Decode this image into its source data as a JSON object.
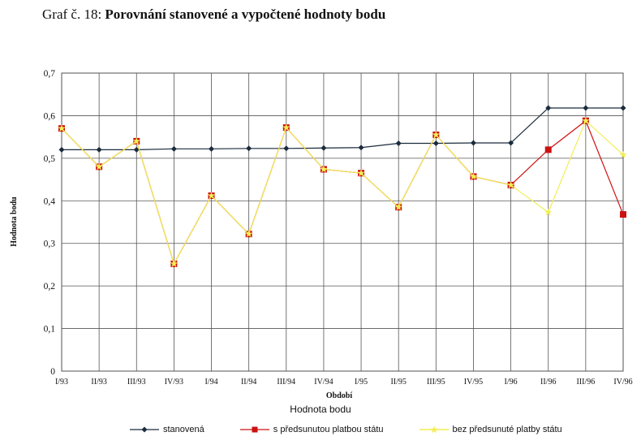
{
  "title": {
    "prefix": "Graf č. 18: ",
    "main": "Porovnání stanovené a vypočtené hodnoty bodu"
  },
  "chart_data": {
    "type": "line",
    "categories": [
      "I/93",
      "II/93",
      "III/93",
      "IV/93",
      "I/94",
      "II/94",
      "III/94",
      "IV/94",
      "I/95",
      "II/95",
      "III/95",
      "IV/95",
      "I/96",
      "II/96",
      "III/96",
      "IV/96"
    ],
    "ylim": [
      0,
      0.7
    ],
    "yticks": [
      "0",
      "0,1",
      "0,2",
      "0,3",
      "0,4",
      "0,5",
      "0,6",
      "0,7"
    ],
    "ylabel": "Hodnota bodu",
    "xlabel": "Období",
    "subtitle": "Hodnota bodu",
    "grid": true,
    "legend_position": "bottom",
    "series": [
      {
        "name": "stanovená",
        "color": "#1a2b3c",
        "marker": "diamond",
        "values": [
          0.52,
          0.52,
          0.52,
          0.522,
          0.522,
          0.523,
          0.523,
          0.524,
          0.525,
          0.535,
          0.535,
          0.536,
          0.536,
          0.618,
          0.618,
          0.618
        ]
      },
      {
        "name": "s předsunutou platbou státu",
        "color": "#cc1111",
        "marker": "square",
        "values": [
          0.57,
          0.48,
          0.54,
          0.252,
          0.412,
          0.322,
          0.572,
          0.474,
          0.465,
          0.385,
          0.555,
          0.457,
          0.437,
          0.52,
          0.588,
          0.368
        ]
      },
      {
        "name": "bez předsunuté platby státu",
        "color": "#f2ee55",
        "marker": "star",
        "values": [
          0.57,
          0.48,
          0.54,
          0.252,
          0.412,
          0.322,
          0.572,
          0.474,
          0.465,
          0.385,
          0.555,
          0.457,
          0.437,
          0.373,
          0.588,
          0.508
        ]
      }
    ]
  }
}
